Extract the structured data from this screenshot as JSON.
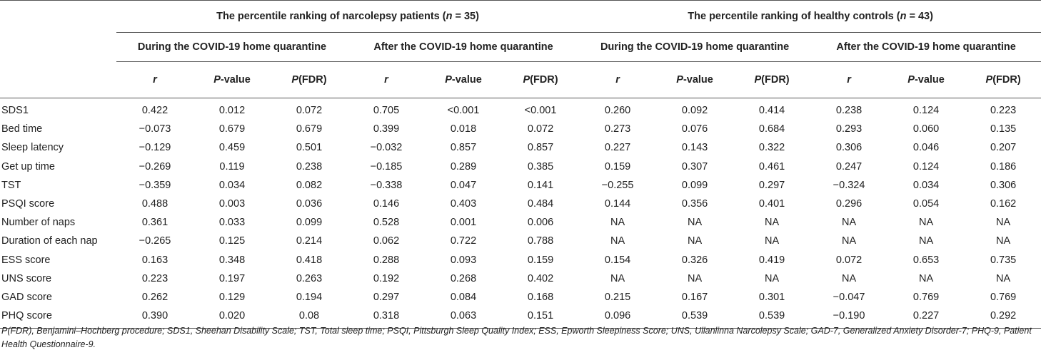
{
  "groups": [
    {
      "prefix": "The percentile ranking of narcolepsy patients (",
      "n_var": "n",
      "n_rest": " = 35)"
    },
    {
      "prefix": "The percentile ranking of healthy controls (",
      "n_var": "n",
      "n_rest": " = 43)"
    }
  ],
  "periods": [
    "During the COVID-19 home quarantine",
    "After the COVID-19 home quarantine",
    "During the COVID-19 home quarantine",
    "After the COVID-19 home quarantine"
  ],
  "stat_headers": {
    "r": "r",
    "p_italic": "P",
    "p_rest": "-value",
    "fdr_italic": "P",
    "fdr_rest": "(FDR)"
  },
  "rows": [
    {
      "label": "SDS1",
      "values": [
        "0.422",
        "0.012",
        "0.072",
        "0.705",
        "<0.001",
        "<0.001",
        "0.260",
        "0.092",
        "0.414",
        "0.238",
        "0.124",
        "0.223"
      ]
    },
    {
      "label": "Bed time",
      "values": [
        "−0.073",
        "0.679",
        "0.679",
        "0.399",
        "0.018",
        "0.072",
        "0.273",
        "0.076",
        "0.684",
        "0.293",
        "0.060",
        "0.135"
      ]
    },
    {
      "label": "Sleep latency",
      "values": [
        "−0.129",
        "0.459",
        "0.501",
        "−0.032",
        "0.857",
        "0.857",
        "0.227",
        "0.143",
        "0.322",
        "0.306",
        "0.046",
        "0.207"
      ]
    },
    {
      "label": "Get up time",
      "values": [
        "−0.269",
        "0.119",
        "0.238",
        "−0.185",
        "0.289",
        "0.385",
        "0.159",
        "0.307",
        "0.461",
        "0.247",
        "0.124",
        "0.186"
      ]
    },
    {
      "label": "TST",
      "values": [
        "−0.359",
        "0.034",
        "0.082",
        "−0.338",
        "0.047",
        "0.141",
        "−0.255",
        "0.099",
        "0.297",
        "−0.324",
        "0.034",
        "0.306"
      ]
    },
    {
      "label": "PSQI score",
      "values": [
        "0.488",
        "0.003",
        "0.036",
        "0.146",
        "0.403",
        "0.484",
        "0.144",
        "0.356",
        "0.401",
        "0.296",
        "0.054",
        "0.162"
      ]
    },
    {
      "label": "Number of naps",
      "values": [
        "0.361",
        "0.033",
        "0.099",
        "0.528",
        "0.001",
        "0.006",
        "NA",
        "NA",
        "NA",
        "NA",
        "NA",
        "NA"
      ]
    },
    {
      "label": "Duration of each nap",
      "values": [
        "−0.265",
        "0.125",
        "0.214",
        "0.062",
        "0.722",
        "0.788",
        "NA",
        "NA",
        "NA",
        "NA",
        "NA",
        "NA"
      ]
    },
    {
      "label": "ESS score",
      "values": [
        "0.163",
        "0.348",
        "0.418",
        "0.288",
        "0.093",
        "0.159",
        "0.154",
        "0.326",
        "0.419",
        "0.072",
        "0.653",
        "0.735"
      ]
    },
    {
      "label": "UNS score",
      "values": [
        "0.223",
        "0.197",
        "0.263",
        "0.192",
        "0.268",
        "0.402",
        "NA",
        "NA",
        "NA",
        "NA",
        "NA",
        "NA"
      ]
    },
    {
      "label": "GAD score",
      "values": [
        "0.262",
        "0.129",
        "0.194",
        "0.297",
        "0.084",
        "0.168",
        "0.215",
        "0.167",
        "0.301",
        "−0.047",
        "0.769",
        "0.769"
      ]
    },
    {
      "label": "PHQ score",
      "values": [
        "0.390",
        "0.020",
        "0.08",
        "0.318",
        "0.063",
        "0.151",
        "0.096",
        "0.539",
        "0.539",
        "−0.190",
        "0.227",
        "0.292"
      ]
    }
  ],
  "footnote": "P(FDR), Benjamini–Hochberg procedure; SDS1, Sheehan Disability Scale; TST, Total sleep time; PSQI, Pittsburgh Sleep Quality Index; ESS, Epworth Sleepiness Score; UNS, Ullanlinna Narcolepsy Scale; GAD-7, Generalized Anxiety Disorder-7; PHQ-9, Patient Health Questionnaire-9."
}
